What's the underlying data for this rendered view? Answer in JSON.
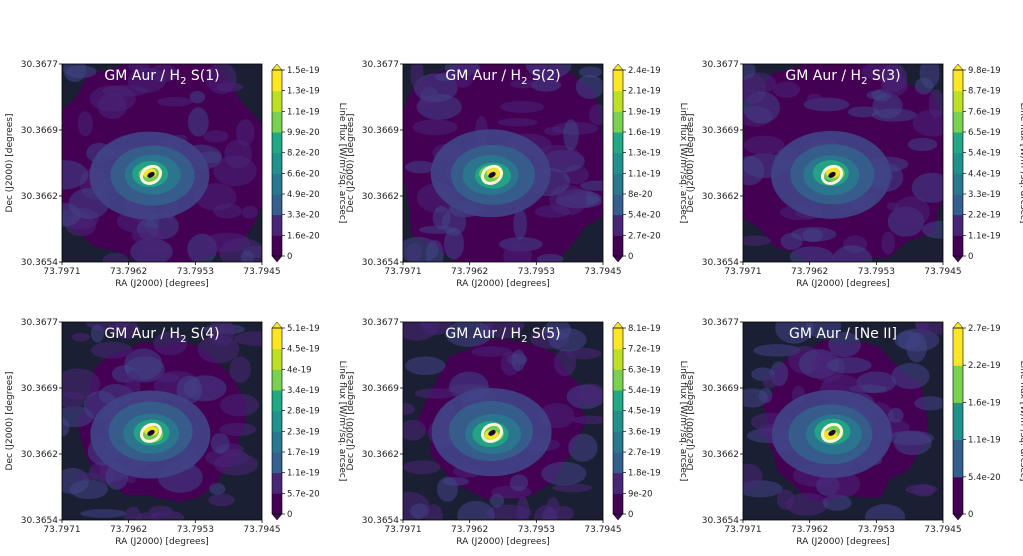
{
  "figure": {
    "top_partial_title": "",
    "xlabel": "RA (J2000) [degrees]",
    "ylabel": "Dec (J2000) [degrees]",
    "colorbar_label": "Line flux [W/m²/sq. arcsec]",
    "x_ticks": [
      "73.7971",
      "73.7962",
      "73.7953",
      "73.7945"
    ],
    "y_ticks": [
      "30.3677",
      "30.3669",
      "30.3662",
      "30.3654"
    ],
    "colors": {
      "cmap": [
        "#440154",
        "#482576",
        "#414487",
        "#355f8d",
        "#2a788e",
        "#21918c",
        "#22a884",
        "#44bf70",
        "#7ad151",
        "#bddf26",
        "#fde725"
      ],
      "dark_background": "#1b1f33",
      "ring": "#fff5d9"
    }
  },
  "chart_data": [
    {
      "type": "heatmap",
      "title_prefix": "GM Aur / H",
      "title_sub": "2",
      "title_suffix": " S(1)",
      "colorbar_ticks": [
        "1.5e-19",
        "1.3e-19",
        "1.1e-19",
        "9.9e-20",
        "8.2e-20",
        "6.6e-20",
        "4.9e-20",
        "3.3e-20",
        "1.6e-20",
        "0"
      ],
      "vmax": 1.5e-19
    },
    {
      "type": "heatmap",
      "title_prefix": "GM Aur / H",
      "title_sub": "2",
      "title_suffix": " S(2)",
      "colorbar_ticks": [
        "2.4e-19",
        "2.1e-19",
        "1.9e-19",
        "1.6e-19",
        "1.3e-19",
        "1.1e-19",
        "8e-20",
        "5.4e-20",
        "2.7e-20",
        "0"
      ],
      "vmax": 2.4e-19
    },
    {
      "type": "heatmap",
      "title_prefix": "GM Aur / H",
      "title_sub": "2",
      "title_suffix": " S(3)",
      "colorbar_ticks": [
        "9.8e-19",
        "8.7e-19",
        "7.6e-19",
        "6.5e-19",
        "5.4e-19",
        "4.4e-19",
        "3.3e-19",
        "2.2e-19",
        "1.1e-19",
        "0"
      ],
      "vmax": 9.8e-19
    },
    {
      "type": "heatmap",
      "title_prefix": "GM Aur / H",
      "title_sub": "2",
      "title_suffix": " S(4)",
      "colorbar_ticks": [
        "5.1e-19",
        "4.5e-19",
        "4e-19",
        "3.4e-19",
        "2.8e-19",
        "2.3e-19",
        "1.7e-19",
        "1.1e-19",
        "5.7e-20",
        "0"
      ],
      "vmax": 5.1e-19
    },
    {
      "type": "heatmap",
      "title_prefix": "GM Aur / H",
      "title_sub": "2",
      "title_suffix": " S(5)",
      "colorbar_ticks": [
        "8.1e-19",
        "7.2e-19",
        "6.3e-19",
        "5.4e-19",
        "4.5e-19",
        "3.6e-19",
        "2.7e-19",
        "1.8e-19",
        "9e-20",
        "0"
      ],
      "vmax": 8.1e-19
    },
    {
      "type": "heatmap",
      "title_prefix": "GM Aur / [Ne II]",
      "title_sub": "",
      "title_suffix": "",
      "colorbar_ticks": [
        "2.7e-19",
        "2.2e-19",
        "1.6e-19",
        "1.1e-19",
        "5.4e-20",
        "0"
      ],
      "vmax": 2.7e-19
    }
  ]
}
